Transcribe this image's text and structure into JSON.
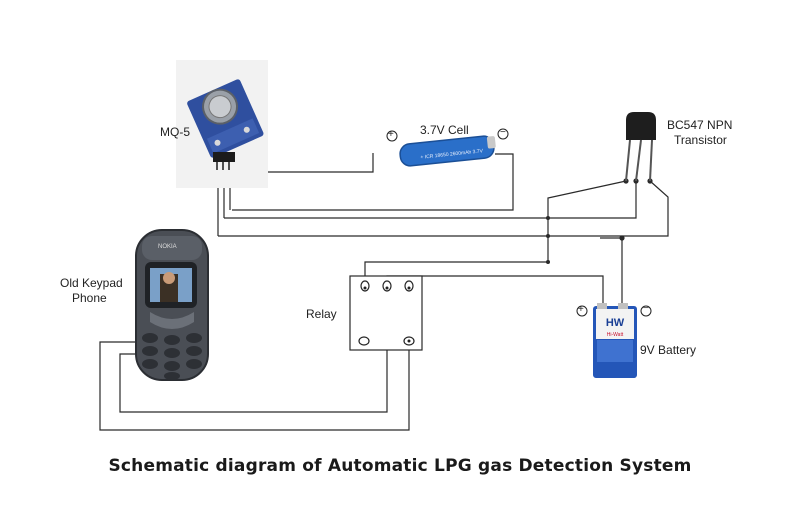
{
  "labels": {
    "mq5": "MQ-5",
    "cell": "3.7V Cell",
    "cell_pos": "+",
    "cell_neg": "−",
    "transistor_line1": "BC547 NPN",
    "transistor_line2": "Transistor",
    "phone_line1": "Old Keypad",
    "phone_line2": "Phone",
    "relay": "Relay",
    "battery": "9V Battery",
    "battery_pos": "+",
    "battery_neg": "−",
    "battery_brand": "HW",
    "battery_brand_sub": "Hi-Watt",
    "phone_brand": "NOKIA"
  },
  "title": "Schematic diagram of Automatic LPG gas Detection System",
  "colors": {
    "wire": "#2a2a2a",
    "module_board": "#2f4f9f",
    "cell_body": "#2a6fc9",
    "battery_body": "#2456b8",
    "battery_label": "#f3f3f3",
    "transistor": "#1e1e1e",
    "phone_body": "#4a4e55"
  }
}
